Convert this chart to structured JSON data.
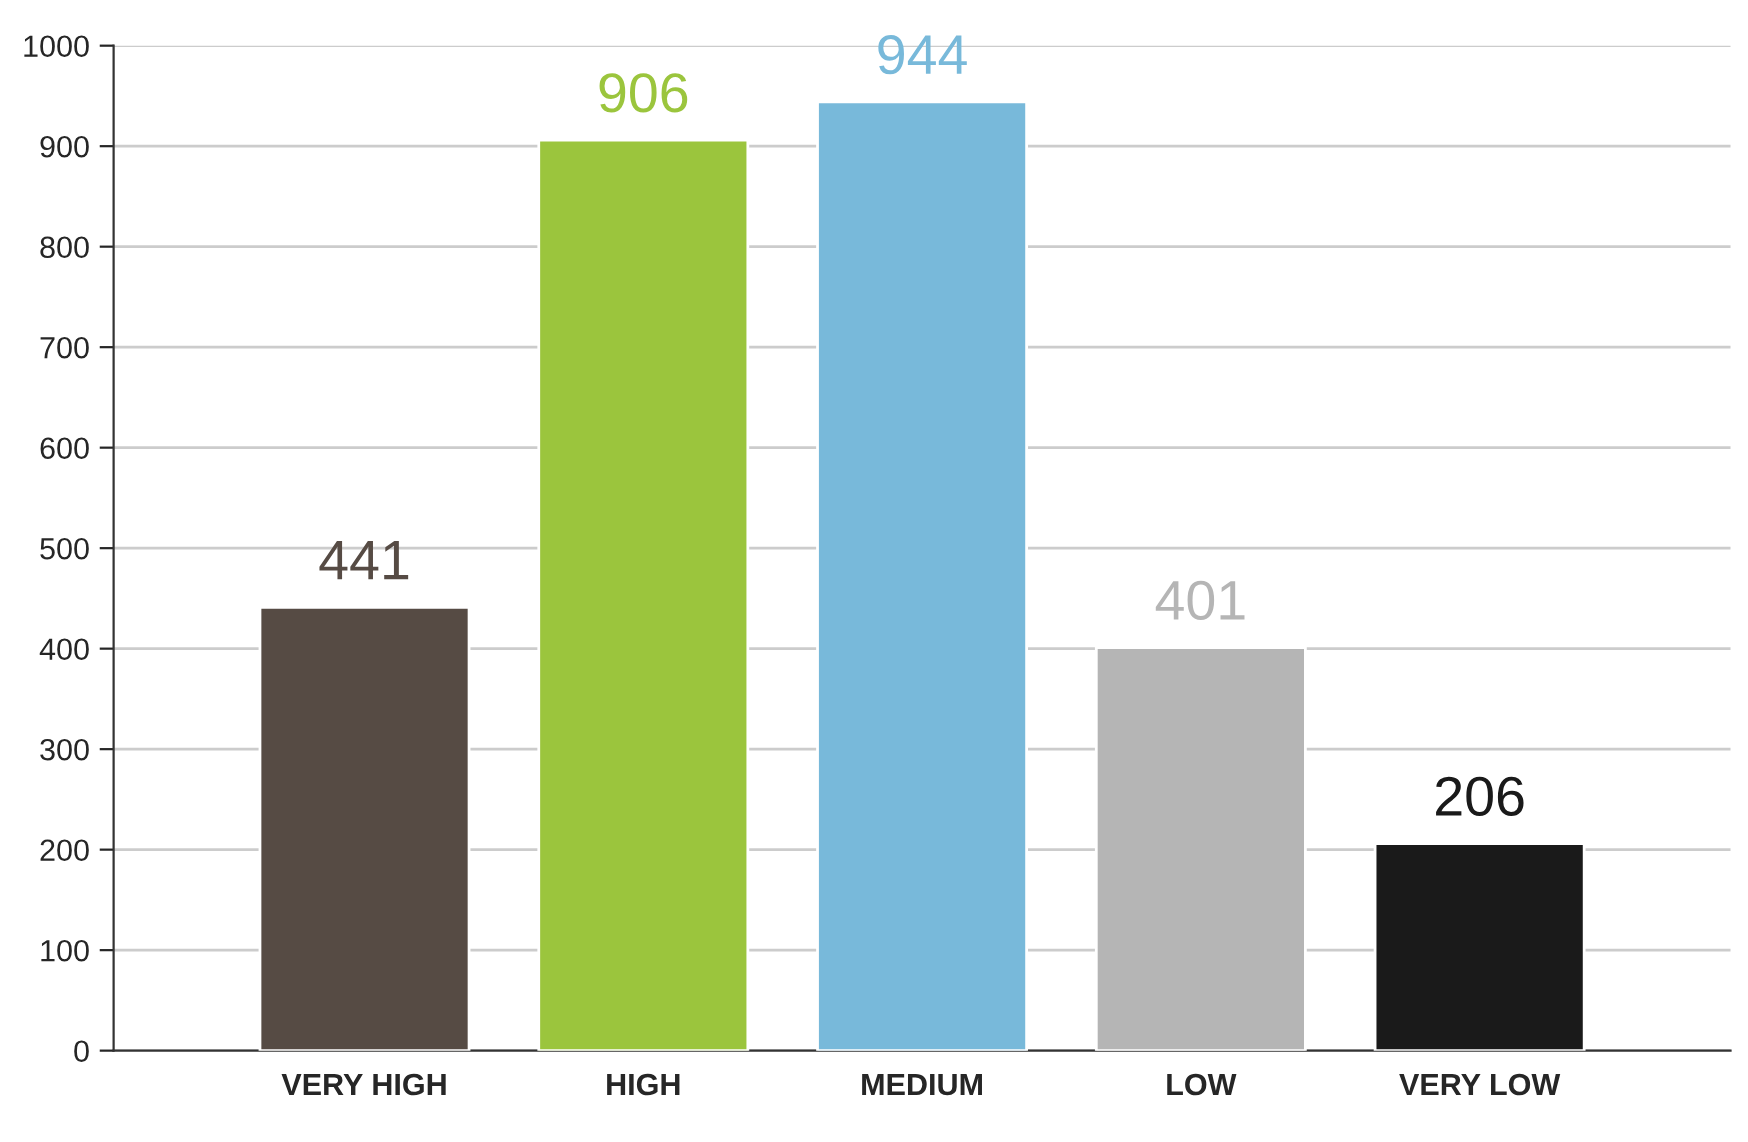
{
  "chart_data": {
    "type": "bar",
    "categories": [
      "VERY HIGH",
      "HIGH",
      "MEDIUM",
      "LOW",
      "VERY LOW"
    ],
    "values": [
      441,
      906,
      944,
      401,
      206
    ],
    "colors": [
      "#564b44",
      "#9bc53d",
      "#78b9da",
      "#b5b5b5",
      "#1a1a1a"
    ],
    "ylim": [
      0,
      1000
    ],
    "yticks": [
      0,
      100,
      200,
      300,
      400,
      500,
      600,
      700,
      800,
      900,
      1000
    ],
    "grid": "y",
    "data_labels": true
  }
}
